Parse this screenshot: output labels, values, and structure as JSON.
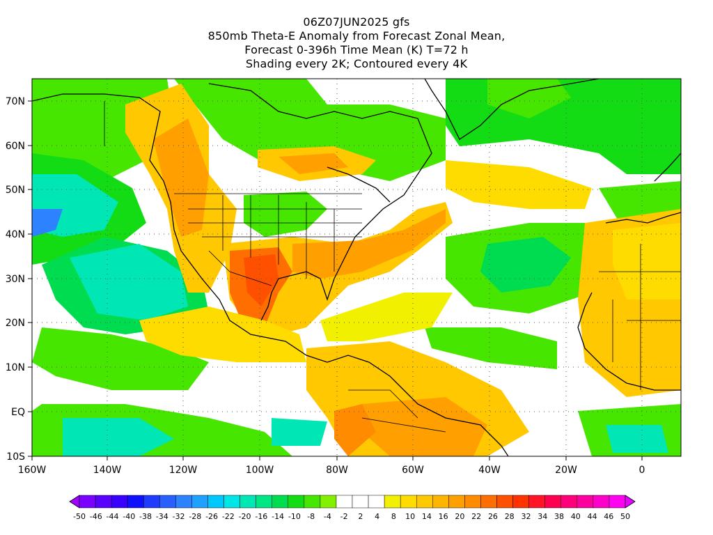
{
  "title": {
    "line1": "06Z07JUN2025 gfs",
    "line2": "850mb Theta-E Anomaly from Forecast Zonal Mean,",
    "line3": "Forecast 0-396h Time Mean (K) T=72 h",
    "line4": "Shading every 2K; Contoured every 4K"
  },
  "map": {
    "projection": "cylindrical-equidistant",
    "lon_range": [
      -160,
      10
    ],
    "lat_range": [
      -10,
      75
    ],
    "gridlines": "dotted",
    "x_ticks": [
      "160W",
      "140W",
      "120W",
      "100W",
      "80W",
      "60W",
      "40W",
      "20W",
      "0"
    ],
    "y_ticks": [
      "70N",
      "60N",
      "50N",
      "40N",
      "30N",
      "20N",
      "10N",
      "EQ",
      "10S"
    ]
  },
  "colorbar": {
    "labels": [
      "-50",
      "-46",
      "-44",
      "-40",
      "-38",
      "-34",
      "-32",
      "-28",
      "-26",
      "-22",
      "-20",
      "-16",
      "-14",
      "-10",
      "-8",
      "-4",
      "-2",
      "2",
      "4",
      "8",
      "10",
      "14",
      "16",
      "20",
      "22",
      "26",
      "28",
      "32",
      "34",
      "38",
      "40",
      "44",
      "46",
      "50"
    ],
    "colors": [
      "#a000ff",
      "#7a00ff",
      "#5a00ff",
      "#3a00ff",
      "#1010ff",
      "#1e3cff",
      "#2860ff",
      "#2d82ff",
      "#20a0ff",
      "#00c8ff",
      "#00e6e6",
      "#00e6b4",
      "#00e682",
      "#00dc50",
      "#14dc14",
      "#46e600",
      "#82f000",
      "#ffffff",
      "#ffffff",
      "#ffffff",
      "#f0f000",
      "#ffdc00",
      "#ffc800",
      "#ffb400",
      "#ffa000",
      "#ff8c00",
      "#ff6e00",
      "#ff5000",
      "#ff3200",
      "#ff1428",
      "#ff0050",
      "#ff0078",
      "#ff00a0",
      "#ff00c8",
      "#ff00f0",
      "#e600ff"
    ]
  }
}
